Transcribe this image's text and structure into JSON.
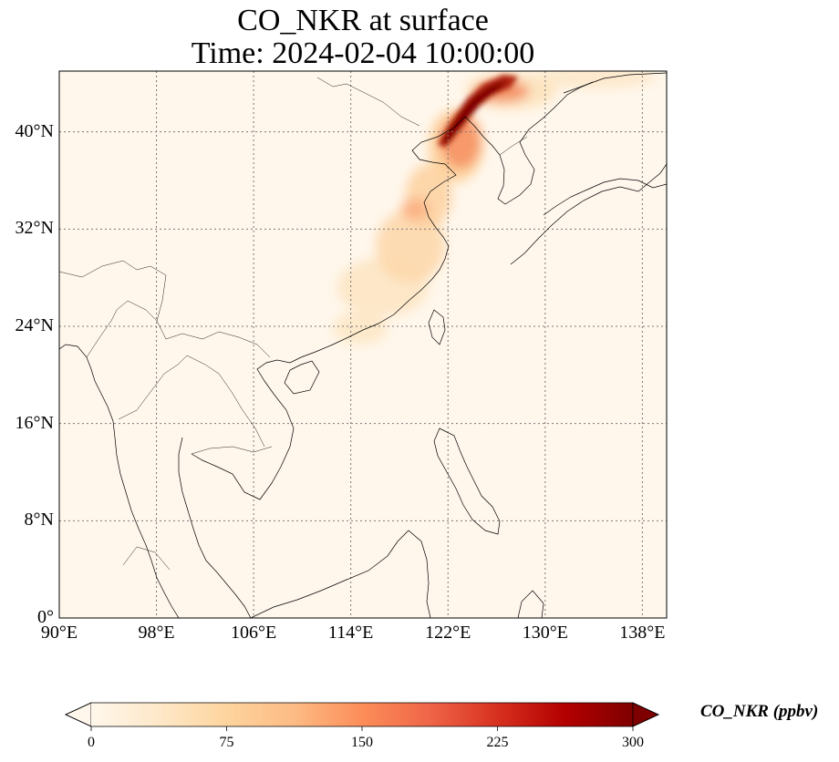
{
  "title": {
    "line1": "CO_NKR at surface",
    "line2": "Time: 2024-02-04 10:00:00"
  },
  "map": {
    "projection": "PlateCarree",
    "lon_range": [
      90,
      140
    ],
    "lat_range": [
      0,
      45
    ],
    "gridlines": "dotted",
    "lon_ticks": [
      {
        "value": 90,
        "label": "90°E"
      },
      {
        "value": 98,
        "label": "98°E"
      },
      {
        "value": 106,
        "label": "106°E"
      },
      {
        "value": 114,
        "label": "114°E"
      },
      {
        "value": 122,
        "label": "122°E"
      },
      {
        "value": 130,
        "label": "130°E"
      },
      {
        "value": 138,
        "label": "138°E"
      }
    ],
    "lat_ticks": [
      {
        "value": 0,
        "label": "0°"
      },
      {
        "value": 8,
        "label": "8°N"
      },
      {
        "value": 16,
        "label": "16°N"
      },
      {
        "value": 24,
        "label": "24°N"
      },
      {
        "value": 32,
        "label": "32°N"
      },
      {
        "value": 40,
        "label": "40°N"
      }
    ]
  },
  "colorbar": {
    "label": "CO_NKR (ppbv)",
    "colormap": "OrRd",
    "extend": "both",
    "range": [
      0,
      300
    ],
    "ticks": [
      "0",
      "75",
      "150",
      "225",
      "300"
    ],
    "colors": [
      "#fff7ec",
      "#fee8c8",
      "#fdd49e",
      "#fdbb84",
      "#fc8d59",
      "#ef6548",
      "#d7301f",
      "#b30000",
      "#7f0000"
    ]
  }
}
